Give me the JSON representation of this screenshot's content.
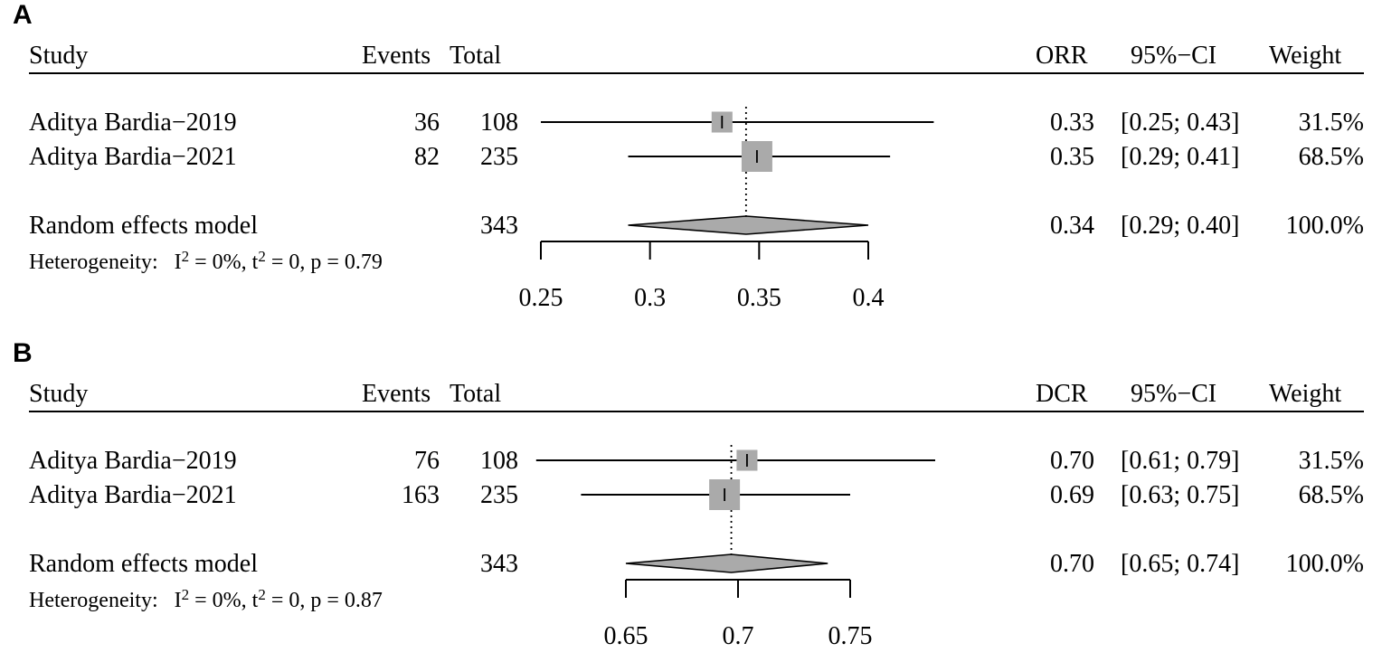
{
  "panels": [
    {
      "label": "A",
      "headers": {
        "study": "Study",
        "events": "Events",
        "total": "Total",
        "measure": "ORR",
        "ci": "95%−CI",
        "weight": "Weight"
      },
      "studies": [
        {
          "name": "Aditya Bardia−2019",
          "events": "36",
          "total": "108",
          "est": "0.33",
          "ci": "[0.25; 0.43]",
          "weight": "31.5%"
        },
        {
          "name": "Aditya Bardia−2021",
          "events": "82",
          "total": "235",
          "est": "0.35",
          "ci": "[0.29; 0.41]",
          "weight": "68.5%"
        }
      ],
      "summary": {
        "name": "Random effects model",
        "total": "343",
        "est": "0.34",
        "ci": "[0.29; 0.40]",
        "weight": "100.0%"
      },
      "heterogeneity": {
        "prefix": "Heterogeneity:",
        "I": "I",
        "I_val": " = 0%",
        "t": " t",
        "t_val": " = 0",
        "p": " p = 0.79"
      },
      "axis_ticks": [
        "0.25",
        "0.3",
        "0.35",
        "0.4"
      ]
    },
    {
      "label": "B",
      "headers": {
        "study": "Study",
        "events": "Events",
        "total": "Total",
        "measure": "DCR",
        "ci": "95%−CI",
        "weight": "Weight"
      },
      "studies": [
        {
          "name": "Aditya Bardia−2019",
          "events": "76",
          "total": "108",
          "est": "0.70",
          "ci": "[0.61; 0.79]",
          "weight": "31.5%"
        },
        {
          "name": "Aditya Bardia−2021",
          "events": "163",
          "total": "235",
          "est": "0.69",
          "ci": "[0.63; 0.75]",
          "weight": "68.5%"
        }
      ],
      "summary": {
        "name": "Random effects model",
        "total": "343",
        "est": "0.70",
        "ci": "[0.65; 0.74]",
        "weight": "100.0%"
      },
      "heterogeneity": {
        "prefix": "Heterogeneity:",
        "I": "I",
        "I_val": " = 0%",
        "t": " t",
        "t_val": " = 0",
        "p": " p = 0.87"
      },
      "axis_ticks": [
        "0.65",
        "0.7",
        "0.75"
      ]
    }
  ],
  "chart_data": [
    {
      "type": "forest",
      "measure": "ORR",
      "studies": [
        {
          "name": "Aditya Bardia−2019",
          "estimate": 0.333,
          "lower": 0.25,
          "upper": 0.43,
          "weight": 31.5,
          "lower_arrow": true,
          "upper_arrow": true
        },
        {
          "name": "Aditya Bardia−2021",
          "estimate": 0.349,
          "lower": 0.29,
          "upper": 0.41,
          "weight": 68.5
        }
      ],
      "summary": {
        "estimate": 0.344,
        "lower": 0.29,
        "upper": 0.4
      },
      "reference_line": 0.344,
      "xlim": [
        0.25,
        0.4
      ],
      "xticks": [
        0.25,
        0.3,
        0.35,
        0.4
      ]
    },
    {
      "type": "forest",
      "measure": "DCR",
      "studies": [
        {
          "name": "Aditya Bardia−2019",
          "estimate": 0.704,
          "lower": 0.61,
          "upper": 0.79,
          "weight": 31.5,
          "lower_arrow": true,
          "upper_arrow": true
        },
        {
          "name": "Aditya Bardia−2021",
          "estimate": 0.694,
          "lower": 0.63,
          "upper": 0.75,
          "weight": 68.5
        }
      ],
      "summary": {
        "estimate": 0.697,
        "lower": 0.65,
        "upper": 0.74
      },
      "reference_line": 0.697,
      "xlim": [
        0.65,
        0.75
      ],
      "xticks": [
        0.65,
        0.7,
        0.75
      ]
    }
  ]
}
